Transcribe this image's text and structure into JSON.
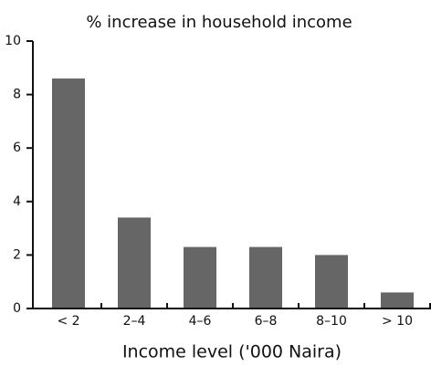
{
  "chart_data": {
    "type": "bar",
    "title": "% increase in household income",
    "x_label": "Income level ('000 Naira)",
    "categories": [
      "< 2",
      "2–4",
      "4–6",
      "6–8",
      "8–10",
      "> 10"
    ],
    "values": [
      8.6,
      3.4,
      2.3,
      2.3,
      2.0,
      0.6
    ],
    "color": "#666666",
    "ylim": [
      0,
      10
    ],
    "yticks": [
      0,
      2,
      4,
      6,
      8,
      10
    ],
    "grid": false
  }
}
